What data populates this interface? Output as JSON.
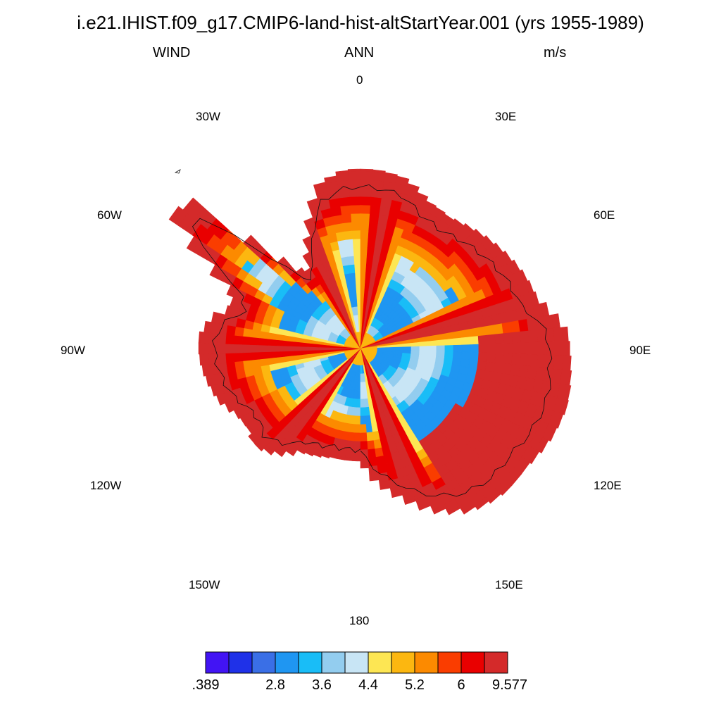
{
  "title": "i.e21.IHIST.f09_g17.CMIP6-land-hist-altStartYear.001 (yrs 1955-1989)",
  "subtitle": {
    "left": "WIND",
    "center": "ANN",
    "right": "m/s"
  },
  "longitude_labels": [
    "0",
    "30E",
    "60E",
    "90E",
    "120E",
    "150E",
    "180",
    "150W",
    "120W",
    "90W",
    "60W",
    "30W"
  ],
  "colorbar": {
    "colors": [
      "#4214f4",
      "#1f31e8",
      "#3a6fe6",
      "#1f96f2",
      "#19bdf7",
      "#93cdef",
      "#c8e5f5",
      "#fde653",
      "#fcb710",
      "#fc8a00",
      "#fa3d00",
      "#e90000",
      "#d42a2a"
    ],
    "labels": [
      ".389",
      "2.8",
      "3.6",
      "4.4",
      "5.2",
      "6",
      "9.577"
    ]
  }
}
